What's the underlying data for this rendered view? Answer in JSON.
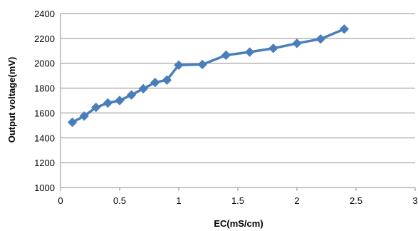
{
  "chart_data": {
    "type": "line",
    "title": "",
    "xlabel": "EC(mS/cm)",
    "ylabel": "Output voltage(mV)",
    "xlim": [
      0,
      3
    ],
    "ylim": [
      1000,
      2400
    ],
    "x_ticks": [
      0,
      0.5,
      1,
      1.5,
      2,
      2.5,
      3
    ],
    "x_tick_labels": [
      "0",
      "0.5",
      "1",
      "1.5",
      "2",
      "2.5",
      "3"
    ],
    "y_ticks": [
      1000,
      1200,
      1400,
      1600,
      1800,
      2000,
      2200,
      2400
    ],
    "y_tick_labels": [
      "1000",
      "1200",
      "1400",
      "1600",
      "1800",
      "2000",
      "2200",
      "2400"
    ],
    "grid": "horizontal",
    "legend": "none",
    "series": [
      {
        "color": "#4a7ebb",
        "marker": "diamond",
        "x": [
          0.1,
          0.2,
          0.3,
          0.4,
          0.5,
          0.6,
          0.7,
          0.8,
          0.9,
          1.0,
          1.2,
          1.4,
          1.6,
          1.8,
          2.0,
          2.2,
          2.4
        ],
        "y": [
          1525,
          1575,
          1645,
          1680,
          1700,
          1745,
          1795,
          1845,
          1865,
          1985,
          1990,
          2065,
          2090,
          2120,
          2160,
          2195,
          2275
        ]
      }
    ]
  }
}
